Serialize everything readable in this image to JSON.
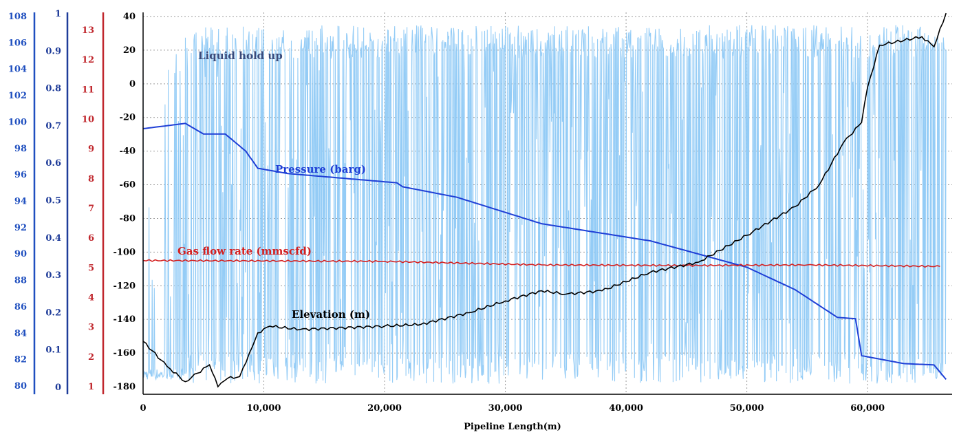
{
  "chart_data": {
    "type": "line",
    "x_label": "Pipeline Length(m)",
    "x_ticks": [
      "0",
      "10,000",
      "20,000",
      "30,000",
      "40,000",
      "50,000",
      "60,000"
    ],
    "x_range": [
      0,
      67000
    ],
    "grid": true,
    "axes": [
      {
        "id": "pressure",
        "color": "#1f4fbf",
        "range": [
          80,
          108
        ],
        "ticks": [
          "80",
          "82",
          "84",
          "86",
          "88",
          "90",
          "92",
          "94",
          "96",
          "98",
          "100",
          "102",
          "104",
          "106",
          "108"
        ]
      },
      {
        "id": "holdup",
        "color": "#1f3c99",
        "range": [
          0,
          1
        ],
        "ticks": [
          "0",
          "0.1",
          "0.2",
          "0.3",
          "0.4",
          "0.5",
          "0.6",
          "0.7",
          "0.8",
          "0.9",
          "1"
        ]
      },
      {
        "id": "gasflow",
        "color": "#c0272d",
        "range": [
          1,
          13
        ],
        "ticks": [
          "1",
          "2",
          "3",
          "4",
          "5",
          "6",
          "7",
          "8",
          "9",
          "10",
          "11",
          "12",
          "13"
        ]
      },
      {
        "id": "elevation",
        "color": "#000000",
        "range": [
          -180,
          40
        ],
        "ticks": [
          "-180",
          "-160",
          "-140",
          "-120",
          "-100",
          "-80",
          "-60",
          "-40",
          "-20",
          "0",
          "20",
          "40"
        ]
      }
    ],
    "series": [
      {
        "name": "Liquid hold up",
        "axis": "holdup",
        "color": "#8ec9f5",
        "style": "noisy-oscillating"
      },
      {
        "name": "Pressure (barg)",
        "axis": "pressure",
        "color": "#1f3fd6",
        "x": [
          0,
          3500,
          5000,
          6800,
          8500,
          9500,
          12000,
          21000,
          21500,
          26000,
          33000,
          42000,
          50000,
          54000,
          57500,
          59000,
          59500,
          63000,
          65500,
          66500
        ],
        "y": [
          99.5,
          99.9,
          99.1,
          99.1,
          97.8,
          96.5,
          96.1,
          95.4,
          95.1,
          94.3,
          92.3,
          91.0,
          89.0,
          87.3,
          85.2,
          85.1,
          82.3,
          81.7,
          81.6,
          80.5
        ]
      },
      {
        "name": "Gas flow rate (mmscfd)",
        "axis": "gasflow",
        "color": "#d42020",
        "x": [
          0,
          20000,
          33000,
          45000,
          55000,
          66000
        ],
        "y": [
          5.25,
          5.22,
          5.1,
          5.08,
          5.1,
          5.05
        ]
      },
      {
        "name": "Elevation (m)",
        "axis": "elevation",
        "color": "#000000",
        "x": [
          0,
          2000,
          3500,
          4500,
          5500,
          6200,
          7000,
          8000,
          8800,
          9500,
          10500,
          13000,
          20000,
          23000,
          27000,
          30000,
          33000,
          35000,
          38000,
          42000,
          46000,
          50000,
          54000,
          56000,
          58000,
          59500,
          60000,
          61000,
          64500,
          65500,
          66500
        ],
        "y": [
          -153,
          -168,
          -177,
          -172,
          -167,
          -180,
          -175,
          -174,
          -160,
          -148,
          -144,
          -146,
          -144,
          -143,
          -136,
          -129,
          -123,
          -125,
          -123,
          -112,
          -106,
          -90,
          -73,
          -60,
          -35,
          -23,
          -2,
          23,
          28,
          22,
          42
        ]
      }
    ]
  }
}
